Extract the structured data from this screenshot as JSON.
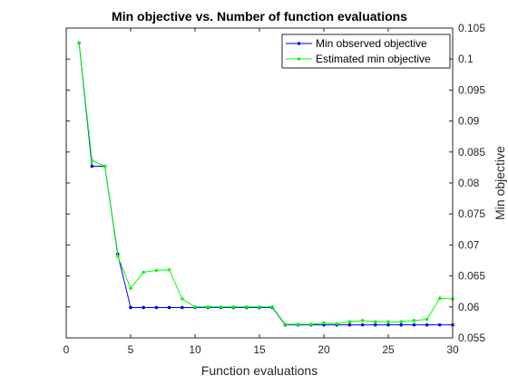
{
  "chart_data": {
    "type": "line",
    "title": "Min objective vs. Number of function evaluations",
    "xlabel": "Function evaluations",
    "ylabel": "Min objective",
    "xlim": [
      0,
      30
    ],
    "ylim": [
      0.055,
      0.105
    ],
    "xticks": [
      0,
      5,
      10,
      15,
      20,
      25,
      30
    ],
    "yticks": [
      0.055,
      0.06,
      0.065,
      0.07,
      0.075,
      0.08,
      0.085,
      0.09,
      0.095,
      0.1,
      0.105
    ],
    "y_axis_side": "right",
    "grid": false,
    "legend_position": "top-right",
    "series": [
      {
        "name": "Min observed objective",
        "color": "#0000ff",
        "x": [
          1,
          2,
          3,
          4,
          5,
          6,
          7,
          8,
          9,
          10,
          11,
          12,
          13,
          14,
          15,
          16,
          17,
          18,
          19,
          20,
          21,
          22,
          23,
          24,
          25,
          26,
          27,
          28,
          29,
          30
        ],
        "values": [
          0.1026,
          0.0827,
          0.0827,
          0.0685,
          0.0599,
          0.0599,
          0.0599,
          0.0599,
          0.0599,
          0.0599,
          0.0599,
          0.0599,
          0.0599,
          0.0599,
          0.0599,
          0.0599,
          0.0571,
          0.0571,
          0.0571,
          0.0571,
          0.0571,
          0.0571,
          0.0571,
          0.0571,
          0.0571,
          0.0571,
          0.0571,
          0.0571,
          0.0571,
          0.0571
        ]
      },
      {
        "name": "Estimated min objective",
        "color": "#00ff00",
        "x": [
          1,
          2,
          3,
          4,
          5,
          6,
          7,
          8,
          9,
          10,
          11,
          12,
          13,
          14,
          15,
          16,
          17,
          18,
          19,
          20,
          21,
          22,
          23,
          24,
          25,
          26,
          27,
          28,
          29,
          30
        ],
        "values": [
          0.1026,
          0.0836,
          0.0827,
          0.0682,
          0.063,
          0.0656,
          0.0659,
          0.066,
          0.0613,
          0.06,
          0.06,
          0.06,
          0.06,
          0.06,
          0.06,
          0.06,
          0.0572,
          0.0572,
          0.0572,
          0.0574,
          0.0573,
          0.0576,
          0.0578,
          0.0576,
          0.0576,
          0.0576,
          0.0578,
          0.058,
          0.0614,
          0.0613
        ]
      }
    ]
  }
}
